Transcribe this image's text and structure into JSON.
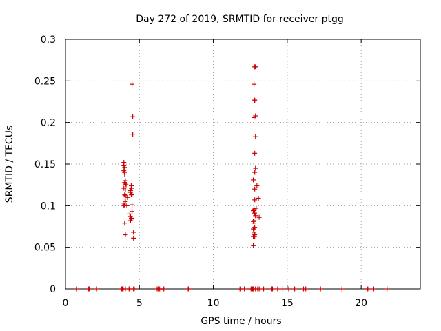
{
  "chart_data": {
    "type": "scatter",
    "title": "Day 272 of 2019, SRMTID for receiver ptgg",
    "xlabel": "GPS time / hours",
    "ylabel": "SRMTID / TECUs",
    "xlim": [
      0,
      24
    ],
    "ylim": [
      0,
      0.3
    ],
    "xticks": [
      0,
      5,
      10,
      15,
      20
    ],
    "xtick_labels": [
      "0",
      "5",
      "10",
      "15",
      "20"
    ],
    "yticks": [
      0,
      0.05,
      0.1,
      0.15,
      0.2,
      0.25,
      0.3
    ],
    "ytick_labels": [
      "0",
      "0.05",
      "0.1",
      "0.15",
      "0.2",
      "0.25",
      "0.3"
    ],
    "grid": true,
    "marker": "+",
    "color": "#cc0000",
    "series": [
      {
        "name": "SRMTID",
        "x": [
          0.75,
          1.55,
          1.6,
          2.1,
          3.8,
          3.85,
          3.9,
          4.05,
          4.3,
          4.35,
          4.6,
          4.65,
          6.2,
          6.3,
          6.35,
          6.45,
          6.6,
          6.65,
          8.3,
          8.35,
          11.8,
          11.85,
          12.1,
          12.55,
          12.6,
          12.65,
          12.7,
          12.85,
          13.0,
          13.1,
          13.4,
          13.95,
          14.0,
          14.35,
          14.7,
          15.1,
          15.5,
          16.1,
          16.25,
          17.25,
          18.7,
          20.4,
          20.45,
          20.85,
          21.75,
          4.5,
          4.55,
          4.55,
          3.95,
          3.95,
          4.0,
          3.95,
          4.0,
          4.0,
          4.05,
          4.0,
          4.05,
          3.95,
          4.05,
          4.1,
          4.0,
          4.05,
          3.9,
          3.95,
          4.0,
          4.05,
          4.15,
          4.2,
          4.45,
          4.4,
          4.45,
          4.5,
          4.4,
          4.45,
          4.5,
          4.35,
          4.4,
          4.45,
          4.4,
          4.45,
          4.5,
          4.6,
          4.0,
          4.05,
          4.6,
          12.8,
          12.85,
          12.75,
          12.8,
          12.8,
          12.85,
          12.75,
          12.85,
          12.8,
          12.85,
          12.8,
          12.7,
          12.8,
          12.95,
          13.05,
          12.8,
          12.9,
          12.7,
          12.75,
          12.8,
          12.85,
          12.75,
          13.1,
          12.7,
          12.75,
          12.8,
          12.7,
          12.75,
          12.8,
          12.7,
          12.75,
          12.8,
          12.7
        ],
        "y": [
          0,
          0,
          0,
          0,
          0,
          0,
          0,
          0,
          0,
          0,
          0,
          0,
          0,
          0,
          0,
          0,
          0,
          0,
          0,
          0,
          0,
          0,
          0,
          0,
          0,
          0,
          0,
          0,
          0,
          0,
          0,
          0,
          0,
          0,
          0,
          0,
          0,
          0,
          0,
          0,
          0,
          0,
          0,
          0,
          0,
          0.246,
          0.207,
          0.186,
          0.152,
          0.148,
          0.146,
          0.142,
          0.14,
          0.138,
          0.13,
          0.128,
          0.126,
          0.121,
          0.119,
          0.125,
          0.113,
          0.112,
          0.103,
          0.1,
          0.101,
          0.105,
          0.1,
          0.11,
          0.124,
          0.118,
          0.121,
          0.114,
          0.116,
          0.113,
          0.101,
          0.09,
          0.087,
          0.084,
          0.082,
          0.085,
          0.093,
          0.068,
          0.079,
          0.065,
          0.061,
          0.267,
          0.267,
          0.246,
          0.227,
          0.226,
          0.208,
          0.206,
          0.183,
          0.163,
          0.145,
          0.14,
          0.131,
          0.12,
          0.124,
          0.109,
          0.107,
          0.097,
          0.094,
          0.096,
          0.091,
          0.088,
          0.082,
          0.086,
          0.081,
          0.079,
          0.074,
          0.072,
          0.068,
          0.065,
          0.063,
          0.066,
          0.063,
          0.052
        ]
      }
    ]
  }
}
